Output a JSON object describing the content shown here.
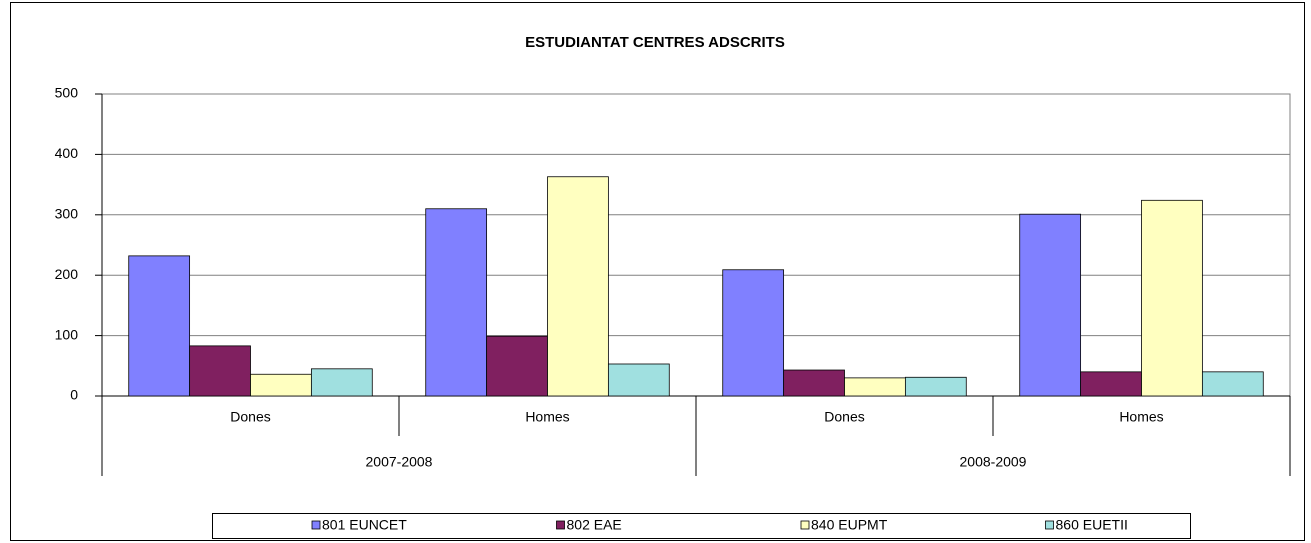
{
  "chart_data": {
    "type": "bar",
    "title": "ESTUDIANTAT CENTRES ADSCRITS",
    "categories": [
      "Dones",
      "Homes",
      "Dones",
      "Homes"
    ],
    "category_groups": [
      "2007-2008",
      "2008-2009"
    ],
    "series": [
      {
        "name": "801 EUNCET",
        "color": "#8080ff",
        "values": [
          232,
          310,
          209,
          301
        ]
      },
      {
        "name": "802 EAE",
        "color": "#802060",
        "values": [
          83,
          99,
          43,
          40
        ]
      },
      {
        "name": "840 EUPMT",
        "color": "#ffffc0",
        "values": [
          36,
          363,
          30,
          324
        ]
      },
      {
        "name": "860 EUETII",
        "color": "#a0e0e0",
        "values": [
          45,
          53,
          31,
          40
        ]
      }
    ],
    "ylim": [
      0,
      500
    ],
    "yticks": [
      0,
      100,
      200,
      300,
      400,
      500
    ],
    "grid": true,
    "legend": "bottom"
  }
}
